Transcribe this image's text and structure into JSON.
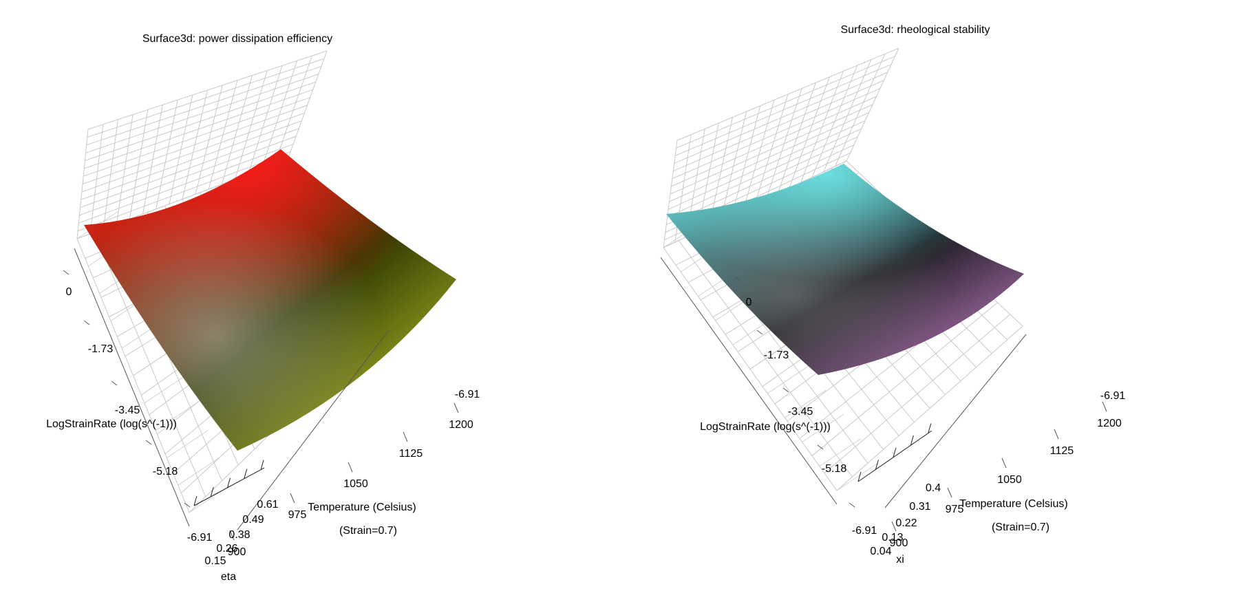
{
  "charts": [
    {
      "title": "Surface3d: power dissipation efficiency",
      "surface_colors": {
        "low": "#2f3a00",
        "high_y": "#ff1a1a",
        "high_x": "#d9dc33",
        "light": "#c8c8c8"
      },
      "axis_tick_labels": {
        "log_strain_rate": [
          "0",
          "-1.73",
          "-3.45",
          "-5.18",
          "-6.91"
        ],
        "temperature": [
          "900",
          "975",
          "1050",
          "1125",
          "1200"
        ],
        "z": [
          "0.15",
          "0.26",
          "0.38",
          "0.49",
          "0.61"
        ],
        "back_top": "-6.91"
      },
      "labels": {
        "y": "LogStrainRate (log(s^(-1)))",
        "x": "Temperature (Celsius)",
        "x_sub": "(Strain=0.7)",
        "z": "eta"
      }
    },
    {
      "title": "Surface3d: rheological stability",
      "surface_colors": {
        "low": "#1a1a1f",
        "high_y": "#6fe6e6",
        "high_x": "#d98ad9",
        "light": "#8a8a8a"
      },
      "axis_tick_labels": {
        "log_strain_rate": [
          "0",
          "-1.73",
          "-3.45",
          "-5.18",
          "-6.91"
        ],
        "temperature": [
          "900",
          "975",
          "1050",
          "1125",
          "1200"
        ],
        "z": [
          "0.04",
          "0.13",
          "0.22",
          "0.31",
          "0.4"
        ],
        "back_top": "-6.91"
      },
      "labels": {
        "y": "LogStrainRate (log(s^(-1)))",
        "x": "Temperature (Celsius)",
        "x_sub": "(Strain=0.7)",
        "z": "xi"
      }
    }
  ],
  "chart_data": [
    {
      "type": "surface3d",
      "title": "Surface3d: power dissipation efficiency",
      "xlabel": "Temperature (Celsius)",
      "ylabel": "LogStrainRate (log(s^(-1)))",
      "zlabel": "eta",
      "subtitle": "(Strain=0.7)",
      "x_ticks": [
        900,
        975,
        1050,
        1125,
        1200
      ],
      "y_ticks": [
        0,
        -1.73,
        -3.45,
        -5.18,
        -6.91
      ],
      "z_ticks": [
        0.15,
        0.26,
        0.38,
        0.49,
        0.61
      ],
      "xlim": [
        900,
        1200
      ],
      "ylim": [
        -6.91,
        0
      ],
      "zlim": [
        0.15,
        0.61
      ],
      "grid": true
    },
    {
      "type": "surface3d",
      "title": "Surface3d: rheological stability",
      "xlabel": "Temperature (Celsius)",
      "ylabel": "LogStrainRate (log(s^(-1)))",
      "zlabel": "xi",
      "subtitle": "(Strain=0.7)",
      "x_ticks": [
        900,
        975,
        1050,
        1125,
        1200
      ],
      "y_ticks": [
        0,
        -1.73,
        -3.45,
        -5.18,
        -6.91
      ],
      "z_ticks": [
        0.04,
        0.13,
        0.22,
        0.31,
        0.4
      ],
      "xlim": [
        900,
        1200
      ],
      "ylim": [
        -6.91,
        0
      ],
      "zlim": [
        0.04,
        0.4
      ],
      "grid": true
    }
  ]
}
